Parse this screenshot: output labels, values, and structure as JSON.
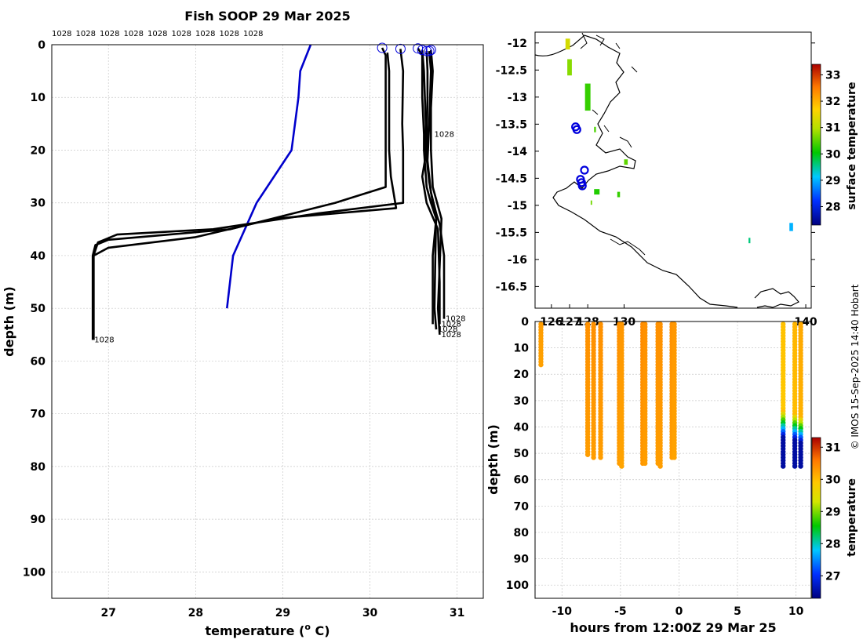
{
  "chart_data": [
    {
      "type": "line",
      "title": "Fish SOOP 29 Mar 2025",
      "xlabel": "temperature (",
      "xlabel_super": "o",
      "xlabel_end": " C)",
      "ylabel": "depth (m)",
      "xlim": [
        26.35,
        31.3
      ],
      "ylim": [
        0,
        105
      ],
      "xticks": [
        27,
        28,
        29,
        30,
        31
      ],
      "yticks": [
        0,
        10,
        20,
        30,
        40,
        50,
        60,
        70,
        80,
        90,
        100
      ],
      "profile_labels": [
        "1028",
        "1028",
        "1028",
        "1028",
        "1028",
        "1028",
        "1028",
        "1028",
        "1028"
      ],
      "surface_markers": [
        {
          "t": 30.14,
          "d": 0.6
        },
        {
          "t": 30.35,
          "d": 0.8
        },
        {
          "t": 30.55,
          "d": 0.7
        },
        {
          "t": 30.6,
          "d": 1.0
        },
        {
          "t": 30.65,
          "d": 1.2
        },
        {
          "t": 30.68,
          "d": 1.2
        },
        {
          "t": 30.7,
          "d": 1.0
        }
      ],
      "series": [
        {
          "name": "climatology",
          "color": "#0000cc",
          "points": [
            [
              29.32,
              0
            ],
            [
              29.2,
              5
            ],
            [
              29.18,
              10
            ],
            [
              29.1,
              20
            ],
            [
              28.7,
              30
            ],
            [
              28.43,
              40
            ],
            [
              28.36,
              50
            ]
          ]
        },
        {
          "name": "profile-1",
          "color": "#000000",
          "points": [
            [
              30.14,
              0.6
            ],
            [
              30.18,
              2
            ],
            [
              30.18,
              10
            ],
            [
              30.18,
              20
            ],
            [
              30.18,
              27
            ],
            [
              29.6,
              30
            ],
            [
              28.4,
              35
            ],
            [
              27.0,
              37
            ],
            [
              26.85,
              38
            ],
            [
              26.82,
              40
            ],
            [
              26.82,
              50
            ],
            [
              26.82,
              56
            ]
          ],
          "label_text": "1028",
          "label_at": [
            26.82,
            56
          ]
        },
        {
          "name": "profile-2",
          "color": "#000000",
          "points": [
            [
              30.35,
              0.8
            ],
            [
              30.38,
              5
            ],
            [
              30.37,
              15
            ],
            [
              30.38,
              20
            ],
            [
              30.38,
              25
            ],
            [
              30.38,
              30
            ],
            [
              29.4,
              32
            ],
            [
              28.2,
              35
            ],
            [
              27.1,
              36
            ],
            [
              26.88,
              37.5
            ],
            [
              26.83,
              40
            ],
            [
              26.83,
              56
            ]
          ]
        },
        {
          "name": "profile-3",
          "color": "#000000",
          "points": [
            [
              30.2,
              1.5
            ],
            [
              30.22,
              5
            ],
            [
              30.22,
              20
            ],
            [
              30.24,
              25
            ],
            [
              30.3,
              31
            ],
            [
              28.9,
              33
            ],
            [
              28.0,
              36.5
            ],
            [
              27.0,
              38.5
            ],
            [
              26.83,
              40
            ],
            [
              26.83,
              56
            ]
          ]
        },
        {
          "name": "profile-4",
          "color": "#000000",
          "points": [
            [
              30.55,
              0.7
            ],
            [
              30.6,
              2
            ],
            [
              30.6,
              10
            ],
            [
              30.62,
              17
            ],
            [
              30.62,
              20
            ],
            [
              30.65,
              27
            ],
            [
              30.7,
              30
            ],
            [
              30.76,
              33
            ],
            [
              30.72,
              40
            ],
            [
              30.72,
              50
            ],
            [
              30.72,
              53
            ]
          ],
          "label_text": "1028",
          "label_at": [
            30.72,
            17
          ]
        },
        {
          "name": "profile-5",
          "color": "#000000",
          "points": [
            [
              30.6,
              1.0
            ],
            [
              30.62,
              5
            ],
            [
              30.64,
              15
            ],
            [
              30.64,
              20
            ],
            [
              30.68,
              26
            ],
            [
              30.72,
              30
            ],
            [
              30.8,
              34
            ],
            [
              30.85,
              40
            ],
            [
              30.85,
              52
            ]
          ],
          "label_text": "1028",
          "label_at": [
            30.85,
            52
          ]
        },
        {
          "name": "profile-6",
          "color": "#000000",
          "points": [
            [
              30.65,
              1.2
            ],
            [
              30.66,
              5
            ],
            [
              30.66,
              10
            ],
            [
              30.65,
              20
            ],
            [
              30.6,
              25
            ],
            [
              30.65,
              30
            ],
            [
              30.78,
              35
            ],
            [
              30.8,
              45
            ],
            [
              30.8,
              53
            ]
          ],
          "label_text": "1028",
          "label_at": [
            30.8,
            53
          ]
        },
        {
          "name": "profile-7",
          "color": "#000000",
          "points": [
            [
              30.68,
              1.2
            ],
            [
              30.7,
              5
            ],
            [
              30.68,
              15
            ],
            [
              30.66,
              22
            ],
            [
              30.7,
              28
            ],
            [
              30.76,
              32
            ],
            [
              30.75,
              40
            ],
            [
              30.74,
              50
            ],
            [
              30.76,
              54
            ]
          ],
          "label_text": "1028",
          "label_at": [
            30.76,
            54
          ]
        },
        {
          "name": "profile-8",
          "color": "#000000",
          "points": [
            [
              30.7,
              1.0
            ],
            [
              30.72,
              5
            ],
            [
              30.7,
              12
            ],
            [
              30.7,
              20
            ],
            [
              30.72,
              27
            ],
            [
              30.82,
              33
            ],
            [
              30.8,
              42
            ],
            [
              30.78,
              50
            ],
            [
              30.8,
              55
            ]
          ],
          "label_text": "1028",
          "label_at": [
            30.8,
            55
          ]
        }
      ]
    },
    {
      "type": "map",
      "colorbar_label": "surface temperature",
      "xlim": [
        125.1,
        140.3
      ],
      "ylim": [
        -16.9,
        -11.8
      ],
      "xticks": [
        126,
        127,
        128,
        130,
        140
      ],
      "xtick_labels": [
        "126",
        "127",
        "128",
        "130",
        "140"
      ],
      "yticks": [
        -12,
        -12.5,
        -13,
        -13.5,
        -14,
        -14.5,
        -15,
        -15.5,
        -16,
        -16.5
      ],
      "cbar_range": [
        27.3,
        33.4
      ],
      "cbar_ticks": [
        28,
        29,
        30,
        31,
        32,
        33
      ],
      "sst_patches": [
        {
          "lon": 126.9,
          "lat": -12.02,
          "val": 31.2,
          "w": 0.25,
          "h": 0.2
        },
        {
          "lon": 127.0,
          "lat": -12.45,
          "val": 30.7,
          "w": 0.25,
          "h": 0.3
        },
        {
          "lon": 128.0,
          "lat": -13.0,
          "val": 30.3,
          "w": 0.3,
          "h": 0.5
        },
        {
          "lon": 128.4,
          "lat": -13.6,
          "val": 30.4,
          "w": 0.1,
          "h": 0.1
        },
        {
          "lon": 130.1,
          "lat": -14.2,
          "val": 30.5,
          "w": 0.2,
          "h": 0.1
        },
        {
          "lon": 128.5,
          "lat": -14.75,
          "val": 30.2,
          "w": 0.3,
          "h": 0.1
        },
        {
          "lon": 129.7,
          "lat": -14.8,
          "val": 30.3,
          "w": 0.15,
          "h": 0.1
        },
        {
          "lon": 128.2,
          "lat": -14.95,
          "val": 30.6,
          "w": 0.08,
          "h": 0.08
        },
        {
          "lon": 139.2,
          "lat": -15.4,
          "val": 29.0,
          "w": 0.2,
          "h": 0.15
        },
        {
          "lon": 136.9,
          "lat": -15.65,
          "val": 29.6,
          "w": 0.1,
          "h": 0.1
        }
      ],
      "track_points": [
        {
          "lon": 127.33,
          "lat": -13.55
        },
        {
          "lon": 127.4,
          "lat": -13.6
        },
        {
          "lon": 127.82,
          "lat": -14.35
        },
        {
          "lon": 127.6,
          "lat": -14.52
        },
        {
          "lon": 127.66,
          "lat": -14.58
        },
        {
          "lon": 127.7,
          "lat": -14.64
        }
      ]
    },
    {
      "type": "scatter",
      "xlabel": "hours from 12:00Z 29 Mar 25",
      "ylabel": "depth (m)",
      "colorbar_label": "temperature",
      "xlim": [
        -12.3,
        11.3
      ],
      "ylim": [
        0,
        105
      ],
      "xticks": [
        -10,
        -5,
        0,
        5,
        10
      ],
      "yticks": [
        0,
        10,
        20,
        30,
        40,
        50,
        60,
        70,
        80,
        90,
        100
      ],
      "cbar_range": [
        26.3,
        31.3
      ],
      "cbar_ticks": [
        27,
        28,
        29,
        30,
        31
      ],
      "casts": [
        {
          "hour": -11.8,
          "max_depth": 17,
          "temp": 30.3
        },
        {
          "hour": -7.8,
          "max_depth": 51,
          "temp": 30.4
        },
        {
          "hour": -7.3,
          "max_depth": 52,
          "temp": 30.4
        },
        {
          "hour": -6.7,
          "max_depth": 52,
          "temp": 30.4
        },
        {
          "hour": -5.1,
          "max_depth": 54,
          "temp": 30.4
        },
        {
          "hour": -4.9,
          "max_depth": 55,
          "temp": 30.35
        },
        {
          "hour": -3.1,
          "max_depth": 54,
          "temp": 30.45
        },
        {
          "hour": -2.9,
          "max_depth": 54,
          "temp": 30.4
        },
        {
          "hour": -1.8,
          "max_depth": 54,
          "temp": 30.4
        },
        {
          "hour": -1.6,
          "max_depth": 55,
          "temp": 30.4
        },
        {
          "hour": -0.6,
          "max_depth": 52,
          "temp": 30.4
        },
        {
          "hour": -0.4,
          "max_depth": 52,
          "temp": 30.35
        },
        {
          "hour": 8.9,
          "max_depth": 56,
          "temp": 30.0,
          "thermocline": 34
        },
        {
          "hour": 9.9,
          "max_depth": 56,
          "temp": 30.1,
          "thermocline": 35
        },
        {
          "hour": 10.4,
          "max_depth": 56,
          "temp": 30.2,
          "thermocline": 36
        }
      ]
    }
  ],
  "credit": "© IMOS 15-Sep-2025 14:40 Hobart"
}
